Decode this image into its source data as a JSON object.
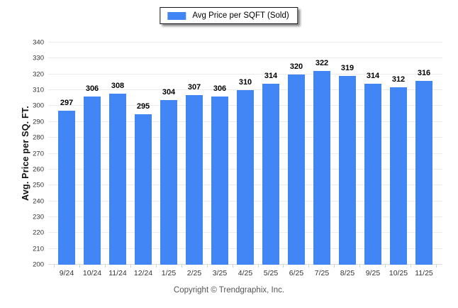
{
  "legend": {
    "label": "Avg Price per SQFT (Sold)",
    "swatch_color": "#4285f4"
  },
  "footer": {
    "copyright": "Copyright © Trendgraphix, Inc."
  },
  "chart_data": {
    "type": "bar",
    "title": "Avg Price per SQFT (Sold)",
    "categories": [
      "9/24",
      "10/24",
      "11/24",
      "12/24",
      "1/25",
      "2/25",
      "3/25",
      "4/25",
      "5/25",
      "6/25",
      "7/25",
      "8/25",
      "9/25",
      "10/25",
      "11/25"
    ],
    "values": [
      297,
      306,
      308,
      295,
      304,
      307,
      306,
      310,
      314,
      320,
      322,
      319,
      314,
      312,
      316
    ],
    "xlabel": "",
    "ylabel": "Avg. Price per SQ. FT.",
    "ylim": [
      200,
      340
    ],
    "yticks": [
      200,
      210,
      220,
      230,
      240,
      250,
      260,
      270,
      280,
      290,
      300,
      310,
      320,
      330,
      340
    ],
    "bar_color": "#4285f4",
    "grid": true,
    "data_labels": true,
    "legend_position": "top-center"
  }
}
